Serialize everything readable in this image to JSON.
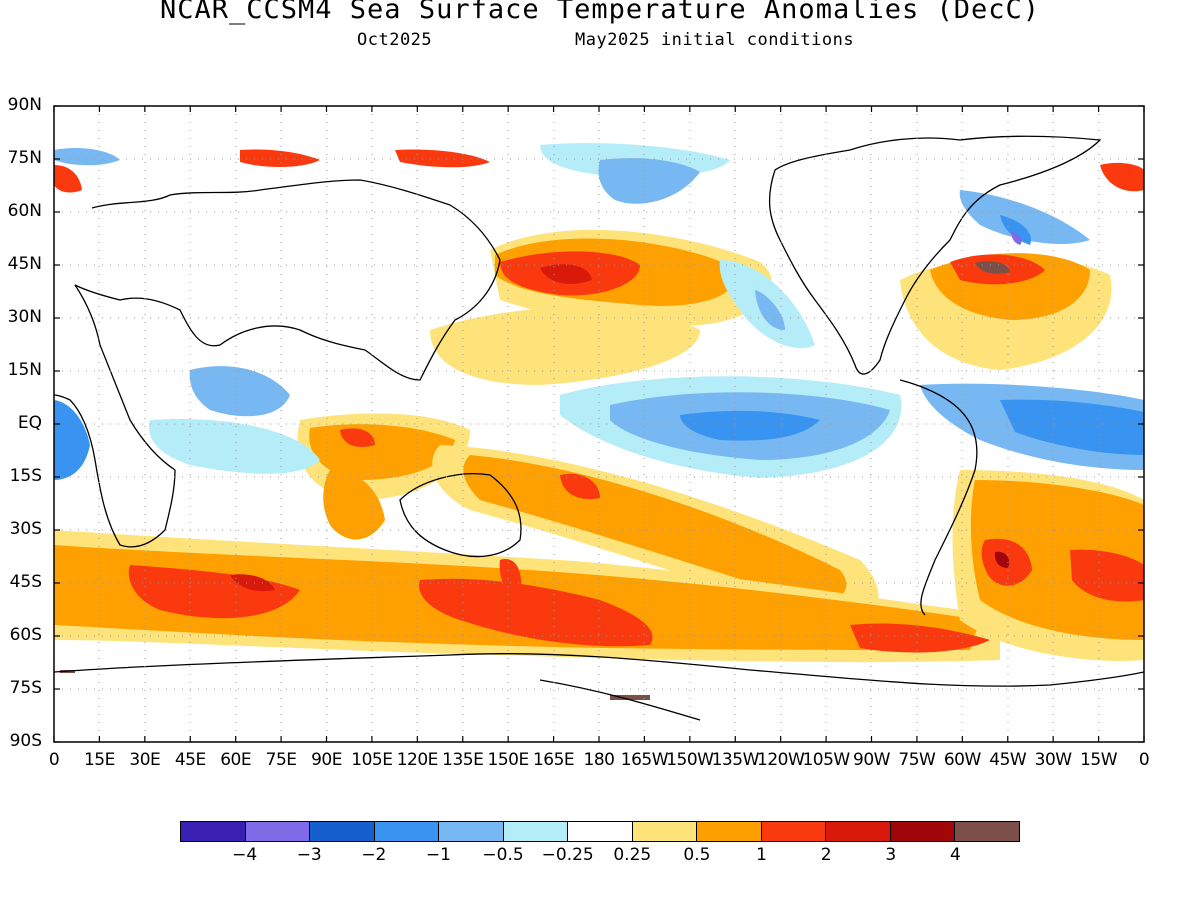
{
  "title": "NCAR_CCSM4 Sea Surface Temperature Anomalies (DecC)",
  "subtitle_left": "Oct2025",
  "subtitle_right": "May2025 initial conditions",
  "lat_labels": [
    "90N",
    "75N",
    "60N",
    "45N",
    "30N",
    "15N",
    "EQ",
    "15S",
    "30S",
    "45S",
    "60S",
    "75S",
    "90S"
  ],
  "lon_labels": [
    "0",
    "15E",
    "30E",
    "45E",
    "60E",
    "75E",
    "90E",
    "105E",
    "120E",
    "135E",
    "150E",
    "165E",
    "180",
    "165W",
    "150W",
    "135W",
    "120W",
    "105W",
    "90W",
    "75W",
    "60W",
    "45W",
    "30W",
    "15W",
    "0"
  ],
  "colorbar": {
    "colors": [
      "#3a1fb5",
      "#7f6ae8",
      "#1560cc",
      "#3894f0",
      "#78b8f2",
      "#b4ecf8",
      "#ffffff",
      "#fde37a",
      "#fda000",
      "#fa3a0e",
      "#d91a0a",
      "#a0060a",
      "#7a5048"
    ],
    "labels": [
      "-4",
      "-3",
      "-2",
      "-1",
      "-0.5",
      "-0.25",
      "0.25",
      "0.5",
      "1",
      "2",
      "3",
      "4"
    ]
  },
  "anomaly_colors": {
    "cool_light": "#b4ecf8",
    "cool": "#78b8f2",
    "cool_mid": "#3894f0",
    "cool_strong": "#1560cc",
    "cool_deep": "#7f6ae8",
    "warm_light": "#fde37a",
    "warm": "#fda000",
    "warm_mid": "#fa3a0e",
    "warm_strong": "#d91a0a",
    "warm_deep": "#a0060a",
    "warm_extreme": "#7a5048"
  }
}
